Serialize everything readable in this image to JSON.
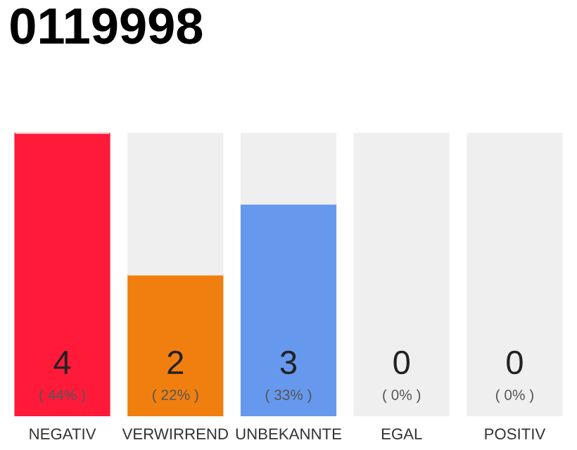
{
  "chart_data": {
    "type": "bar",
    "title": "0119998",
    "stacked": true,
    "categories": [
      "NEGATIV",
      "VERWIRREND",
      "UNBEKANNTE",
      "EGAL",
      "POSITIV"
    ],
    "series": [
      {
        "colors": [
          "#ff1a3a",
          "#f07f0f",
          "#6699ee",
          "#88cc66",
          "#22aa44"
        ],
        "values": [
          4,
          2,
          3,
          0,
          0
        ],
        "value_labels": [
          "4\n( 44% )",
          "2\n( 22% )",
          "3\n( 33% )",
          "0\n( 0% )",
          "0\n( 0% )"
        ]
      },
      {
        "color": "#efefef",
        "values": [
          0,
          2,
          1,
          4,
          4
        ]
      }
    ]
  }
}
